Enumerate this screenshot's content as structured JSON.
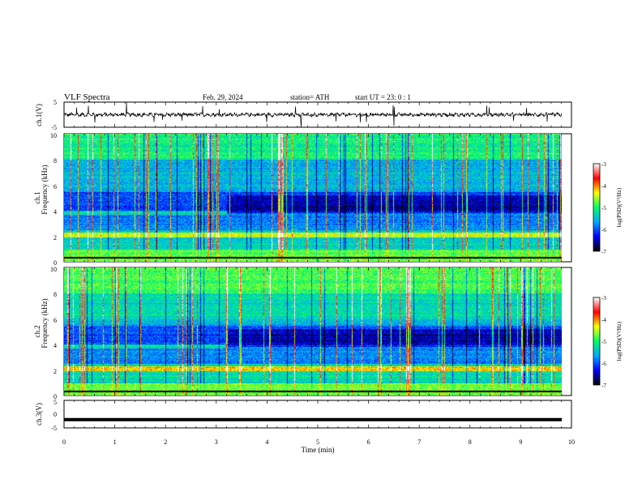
{
  "header": {
    "title": "VLF  Spectra",
    "date": "Feb. 29, 2024",
    "station": "station= ATH",
    "start_ut": "start  UT  =   23: 0  : 1"
  },
  "chart_data": [
    {
      "type": "line",
      "panel": "ch1-waveform",
      "ylabel": "ch.1(V)",
      "ylim": [
        -5,
        5
      ],
      "yticks": [
        "5",
        "-5"
      ],
      "xlim": [
        0,
        10
      ],
      "note_values": "continuous noisy waveform near 0 V with sporadic spikes"
    },
    {
      "type": "heatmap",
      "panel": "ch1-spectrogram",
      "ylabel_lines": [
        "ch.1",
        "Frequency  (kHz)"
      ],
      "ylim": [
        0,
        10
      ],
      "yticks": [
        "0",
        "2",
        "4",
        "6",
        "8",
        "10"
      ],
      "xlim": [
        0,
        9.8
      ],
      "colorbar": {
        "label": "log(PSD)(V²/Hz)",
        "range": [
          -7,
          -3
        ],
        "ticks": [
          "-3",
          "-4",
          "-5",
          "-6",
          "-7"
        ],
        "colors": [
          "#000000",
          "#0000ff",
          "#00aaff",
          "#00ff66",
          "#ffff00",
          "#ff0000",
          "#ffffff"
        ]
      }
    },
    {
      "type": "heatmap",
      "panel": "ch2-spectrogram",
      "ylabel_lines": [
        "ch.2",
        "Frequency  (kHz)"
      ],
      "ylim": [
        0,
        10
      ],
      "yticks": [
        "0",
        "2",
        "4",
        "6",
        "8",
        "10"
      ],
      "xlim": [
        0,
        9.8
      ],
      "colorbar": {
        "label": "log(PSD)(V²/Hz)",
        "range": [
          -7,
          -3
        ],
        "ticks": [
          "-3",
          "-4",
          "-5",
          "-6",
          "-7"
        ],
        "colors": [
          "#000000",
          "#0000ff",
          "#00aaff",
          "#00ff66",
          "#ffff00",
          "#ff0000",
          "#ffffff"
        ]
      }
    },
    {
      "type": "line",
      "panel": "ch3-waveform",
      "ylabel": "ch.3(V)",
      "ylim": [
        -5,
        5
      ],
      "yticks": [
        "5",
        "0",
        "-5"
      ],
      "xlim": [
        0,
        10
      ],
      "level_v": -2,
      "xlabel": "Time  (min)",
      "xticks": [
        "0",
        "1",
        "2",
        "3",
        "4",
        "5",
        "6",
        "7",
        "8",
        "9",
        "10"
      ]
    }
  ]
}
